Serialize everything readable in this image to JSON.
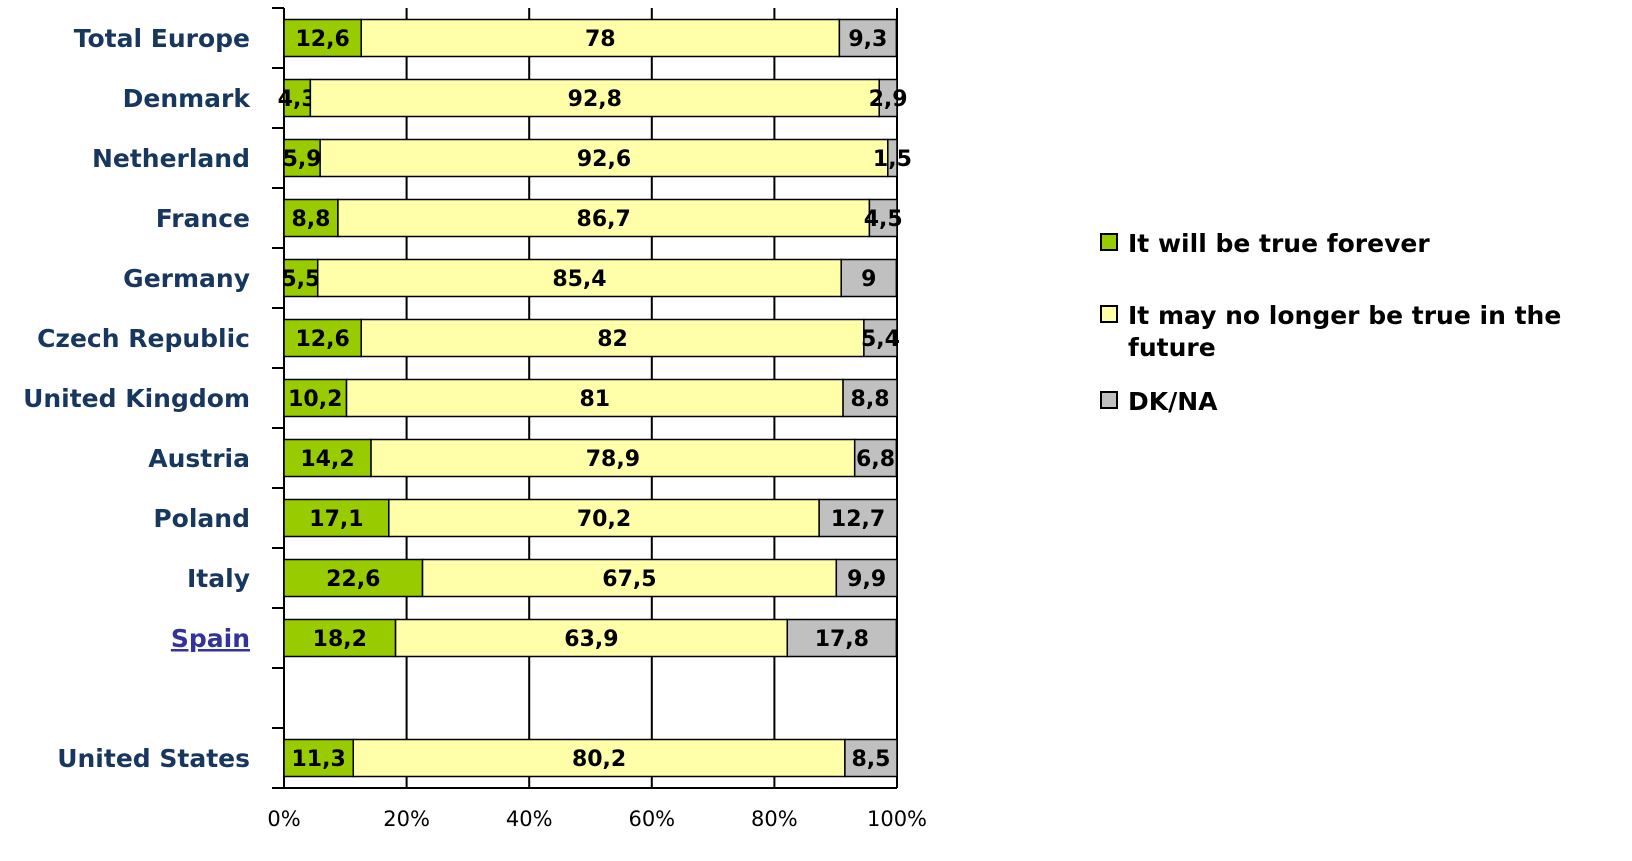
{
  "chart_data": {
    "type": "bar",
    "orientation": "horizontal",
    "stacked": true,
    "percent_axis": true,
    "categories": [
      "Total Europe",
      "Denmark",
      "Netherland",
      "France",
      "Germany",
      "Czech Republic",
      "United Kingdom",
      "Austria",
      "Poland",
      "Italy",
      "Spain",
      "",
      "United States"
    ],
    "highlighted_category": "Spain",
    "series": [
      {
        "name": "It will be true forever",
        "color": "#99CC00",
        "values": [
          12.6,
          4.3,
          5.9,
          8.8,
          5.5,
          12.6,
          10.2,
          14.2,
          17.1,
          22.6,
          18.2,
          null,
          11.3
        ],
        "labels": [
          "12,6",
          "4,3",
          "5,9",
          "8,8",
          "5,5",
          "12,6",
          "10,2",
          "14,2",
          "17,1",
          "22,6",
          "18,2",
          "",
          "11,3"
        ]
      },
      {
        "name": "It may no longer be true in the future",
        "color": "#FFFFAA",
        "values": [
          78,
          92.8,
          92.6,
          86.7,
          85.4,
          82,
          81,
          78.9,
          70.2,
          67.5,
          63.9,
          null,
          80.2
        ],
        "labels": [
          "78",
          "92,8",
          "92,6",
          "86,7",
          "85,4",
          "82",
          "81",
          "78,9",
          "70,2",
          "67,5",
          "63,9",
          "",
          "80,2"
        ]
      },
      {
        "name": "DK/NA",
        "color": "#C0C0C0",
        "values": [
          9.3,
          2.9,
          1.5,
          4.5,
          9,
          5.4,
          8.8,
          6.8,
          12.7,
          9.9,
          17.8,
          null,
          8.5
        ],
        "labels": [
          "9,3",
          "2,9",
          "1,5",
          "4,5",
          "9",
          "5,4",
          "8,8",
          "6,8",
          "12,7",
          "9,9",
          "17,8",
          "",
          "8,5"
        ]
      }
    ],
    "x_ticks": [
      "0%",
      "20%",
      "40%",
      "60%",
      "80%",
      "100%"
    ],
    "xlim": [
      0,
      100
    ],
    "grid": "vertical",
    "legend_position": "right",
    "category_label_color": "#17375E",
    "highlight_label_color": "#333399"
  }
}
